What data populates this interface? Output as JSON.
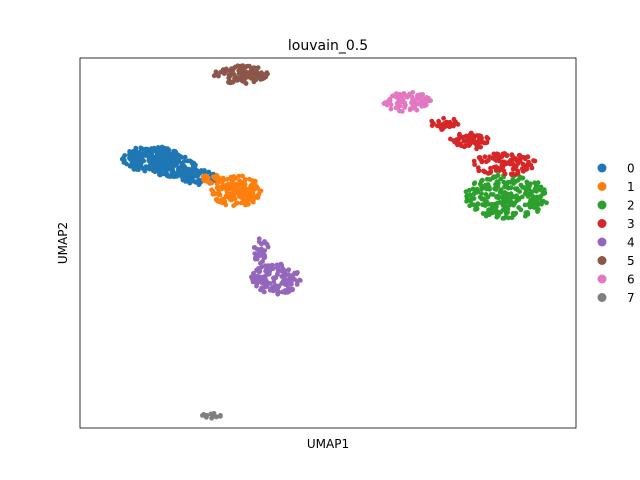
{
  "chart_data": {
    "type": "scatter",
    "title": "louvain_0.5",
    "xlabel": "UMAP1",
    "ylabel": "UMAP2",
    "xlim": [
      0,
      100
    ],
    "ylim": [
      0,
      100
    ],
    "ticks": false,
    "grid": false,
    "legend_position": "right",
    "series": [
      {
        "name": "0",
        "color": "#1f77b4",
        "clusters": [
          {
            "cx": 14.5,
            "cy": 72.7,
            "rx": 6.0,
            "ry": 3.5,
            "n": 220
          },
          {
            "cx": 19.0,
            "cy": 70.7,
            "rx": 4.5,
            "ry": 3.0,
            "n": 120
          },
          {
            "cx": 24.0,
            "cy": 67.7,
            "rx": 3.5,
            "ry": 2.0,
            "n": 60
          }
        ]
      },
      {
        "name": "1",
        "color": "#ff7f0e",
        "clusters": [
          {
            "cx": 31.5,
            "cy": 64.1,
            "rx": 5.0,
            "ry": 4.2,
            "n": 170
          },
          {
            "cx": 26.8,
            "cy": 67.2,
            "rx": 2.5,
            "ry": 1.3,
            "n": 25
          }
        ]
      },
      {
        "name": "2",
        "color": "#2ca02c",
        "clusters": [
          {
            "cx": 86.0,
            "cy": 62.5,
            "rx": 8.5,
            "ry": 6.0,
            "n": 260
          }
        ]
      },
      {
        "name": "3",
        "color": "#d62728",
        "clusters": [
          {
            "cx": 85.5,
            "cy": 71.3,
            "rx": 6.5,
            "ry": 3.0,
            "n": 100
          },
          {
            "cx": 78.5,
            "cy": 77.5,
            "rx": 4.0,
            "ry": 2.3,
            "n": 60
          },
          {
            "cx": 73.5,
            "cy": 82.2,
            "rx": 3.0,
            "ry": 1.6,
            "n": 30
          }
        ]
      },
      {
        "name": "4",
        "color": "#9467bd",
        "clusters": [
          {
            "cx": 39.5,
            "cy": 40.3,
            "rx": 5.0,
            "ry": 4.2,
            "n": 140
          },
          {
            "cx": 36.5,
            "cy": 47.8,
            "rx": 1.5,
            "ry": 3.5,
            "n": 30
          }
        ]
      },
      {
        "name": "5",
        "color": "#8c564b",
        "clusters": [
          {
            "cx": 32.5,
            "cy": 95.5,
            "rx": 5.5,
            "ry": 2.5,
            "n": 110
          }
        ]
      },
      {
        "name": "6",
        "color": "#e377c2",
        "clusters": [
          {
            "cx": 66.0,
            "cy": 88.0,
            "rx": 5.0,
            "ry": 2.8,
            "n": 80
          }
        ]
      },
      {
        "name": "7",
        "color": "#7f7f7f",
        "clusters": [
          {
            "cx": 26.5,
            "cy": 3.2,
            "rx": 2.0,
            "ry": 0.8,
            "n": 14
          }
        ]
      }
    ]
  }
}
